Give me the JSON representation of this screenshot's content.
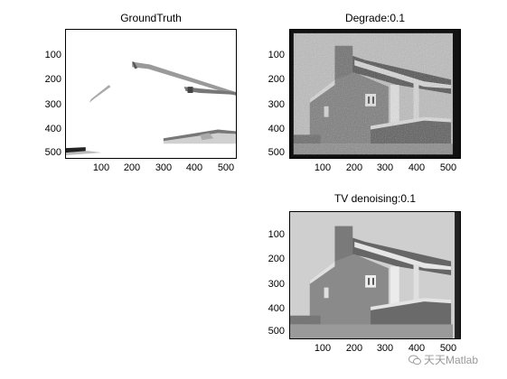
{
  "panels": {
    "ground_truth": {
      "title": "GroundTruth",
      "yticks": [
        "100",
        "200",
        "300",
        "400",
        "500"
      ],
      "xticks": [
        "100",
        "200",
        "300",
        "400",
        "500"
      ]
    },
    "degrade": {
      "title": "Degrade:0.1",
      "yticks": [
        "100",
        "200",
        "300",
        "400",
        "500"
      ],
      "xticks": [
        "100",
        "200",
        "300",
        "400",
        "500"
      ]
    },
    "tv": {
      "title": "TV denoising:0.1",
      "yticks": [
        "100",
        "200",
        "300",
        "400",
        "500"
      ],
      "xticks": [
        "100",
        "200",
        "300",
        "400",
        "500"
      ]
    }
  },
  "watermark": {
    "text": "天天Matlab"
  }
}
